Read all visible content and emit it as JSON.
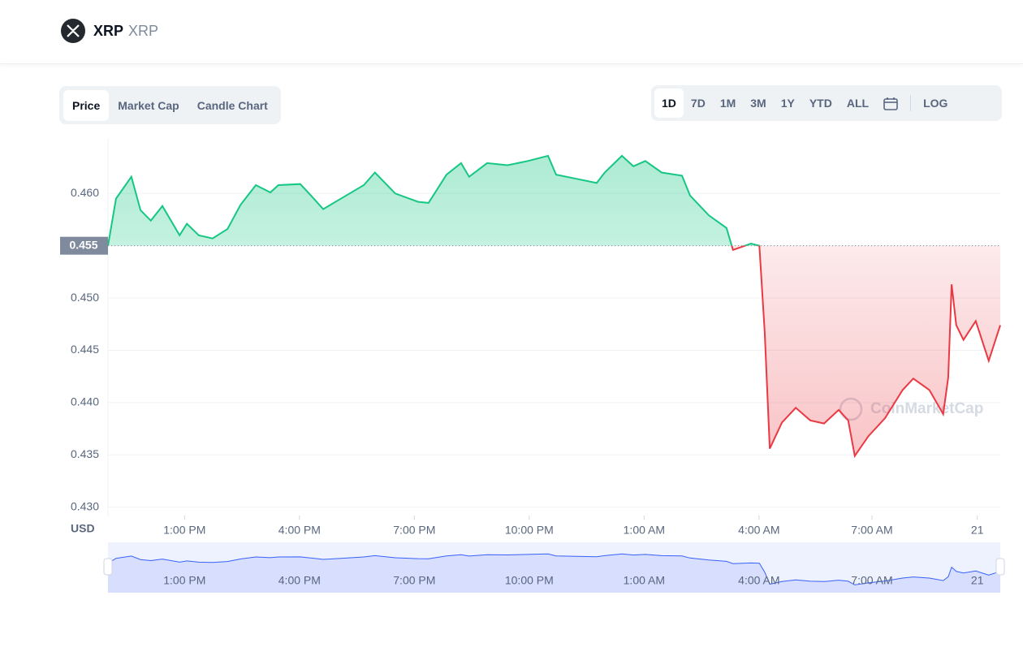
{
  "header": {
    "symbol": "XRP",
    "name": "XRP"
  },
  "tabs": [
    "Price",
    "Market Cap",
    "Candle Chart"
  ],
  "active_tab": 0,
  "ranges": [
    "1D",
    "7D",
    "1M",
    "3M",
    "1Y",
    "YTD",
    "ALL"
  ],
  "active_range": 0,
  "log_button": "LOG",
  "chart_data": {
    "type": "line",
    "y_unit": "USD",
    "watermark": "CoinMarketCap",
    "baseline": 0.455,
    "up_color": "#16c784",
    "down_color": "#ea3943",
    "navigator_color": "#3861fb",
    "grid": true,
    "x": [
      0,
      0.21,
      0.61,
      0.85,
      1.12,
      1.42,
      1.87,
      2.06,
      2.37,
      2.73,
      3.12,
      3.46,
      3.86,
      4.24,
      4.45,
      5.02,
      5.3,
      5.62,
      6.08,
      6.68,
      6.97,
      7.5,
      8.1,
      8.37,
      8.84,
      9.22,
      9.43,
      9.9,
      10.43,
      10.96,
      11.49,
      11.7,
      12.23,
      12.76,
      12.97,
      13.42,
      13.72,
      14.03,
      14.46,
      14.99,
      15.2,
      15.69,
      16.15,
      16.32,
      16.79,
      17.01,
      17.15,
      17.28,
      17.6,
      17.96,
      18.34,
      18.7,
      19.08,
      19.33,
      19.5,
      19.86,
      20.29,
      20.75,
      21.03,
      21.45,
      21.81,
      21.94,
      22.03,
      22.15,
      22.34,
      22.66,
      23.0,
      23.3
    ],
    "values": [
      0.455,
      0.4595,
      0.4616,
      0.4584,
      0.4574,
      0.4588,
      0.456,
      0.4571,
      0.456,
      0.4557,
      0.4566,
      0.4589,
      0.4608,
      0.4601,
      0.4608,
      0.4609,
      0.4598,
      0.4585,
      0.4595,
      0.4608,
      0.462,
      0.46,
      0.4592,
      0.4591,
      0.4618,
      0.4629,
      0.4616,
      0.4629,
      0.4627,
      0.4631,
      0.4636,
      0.4618,
      0.4614,
      0.461,
      0.462,
      0.4636,
      0.4626,
      0.4631,
      0.462,
      0.4617,
      0.4598,
      0.4579,
      0.4567,
      0.4546,
      0.4552,
      0.455,
      0.4467,
      0.4356,
      0.4381,
      0.4395,
      0.4383,
      0.438,
      0.4393,
      0.4383,
      0.4349,
      0.4368,
      0.4385,
      0.4412,
      0.4423,
      0.4412,
      0.4389,
      0.4424,
      0.4513,
      0.4474,
      0.446,
      0.4478,
      0.444,
      0.4474
    ],
    "xlim": [
      0,
      23.3
    ],
    "xticks": [
      {
        "value": 2,
        "label": "1:00 PM"
      },
      {
        "value": 5,
        "label": "4:00 PM"
      },
      {
        "value": 8,
        "label": "7:00 PM"
      },
      {
        "value": 11,
        "label": "10:00 PM"
      },
      {
        "value": 14,
        "label": "1:00 AM"
      },
      {
        "value": 17,
        "label": "4:00 AM"
      },
      {
        "value": 19.95,
        "label": "7:00 AM"
      },
      {
        "value": 22.7,
        "label": "21"
      }
    ],
    "ylim": [
      0.4292,
      0.4653
    ],
    "yticks": [
      {
        "value": 0.43,
        "label": "0.430"
      },
      0.435,
      {
        "value": 0.44,
        "label": "0.440"
      },
      0.445,
      {
        "value": 0.45,
        "label": "0.450"
      },
      0.455,
      {
        "value": 0.46,
        "label": "0.460"
      }
    ]
  }
}
